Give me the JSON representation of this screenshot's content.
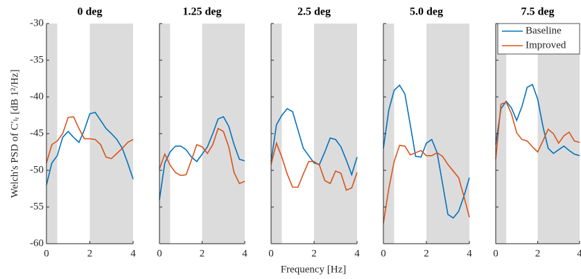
{
  "xlabel": "Frequency [Hz]",
  "ylabel": "Welch's PSD of C′ₗᵣ [dB 1²/Hz]",
  "chart_data": [
    {
      "type": "line",
      "title": "0 deg",
      "x": [
        0,
        0.25,
        0.5,
        0.75,
        1,
        1.25,
        1.5,
        1.75,
        2,
        2.25,
        2.5,
        2.75,
        3,
        3.25,
        3.5,
        3.75,
        4
      ],
      "series": [
        {
          "name": "Baseline",
          "color": "#0072BD",
          "values": [
            -52,
            -49,
            -48,
            -45.5,
            -44.7,
            -45.5,
            -46.2,
            -44.5,
            -42.3,
            -42.1,
            -43.2,
            -44.3,
            -45,
            -45.8,
            -47,
            -49,
            -51.2
          ]
        },
        {
          "name": "Improved",
          "color": "#D95319",
          "values": [
            -49,
            -46.5,
            -46,
            -45,
            -42.8,
            -42.7,
            -44.3,
            -45.7,
            -45.7,
            -45.8,
            -46.5,
            -48.2,
            -48.4,
            -47.7,
            -47,
            -46.2,
            -45.8
          ]
        }
      ],
      "shaded": [
        [
          0,
          0.5
        ],
        [
          2,
          4
        ]
      ],
      "shade_color": "#dcdcdc",
      "xlim": [
        0,
        4
      ],
      "xticks": [
        0,
        2,
        4
      ],
      "ylim": [
        -60,
        -30
      ],
      "yticks": [
        -60,
        -55,
        -50,
        -45,
        -40,
        -35,
        -30
      ]
    },
    {
      "type": "line",
      "title": "1.25 deg",
      "x": [
        0,
        0.25,
        0.5,
        0.75,
        1,
        1.25,
        1.5,
        1.75,
        2,
        2.25,
        2.5,
        2.75,
        3,
        3.25,
        3.5,
        3.75,
        4
      ],
      "series": [
        {
          "name": "Baseline",
          "color": "#0072BD",
          "values": [
            -54,
            -49,
            -47.5,
            -46.7,
            -46.7,
            -47.2,
            -48.2,
            -48.8,
            -47.8,
            -46.8,
            -45,
            -43,
            -42.7,
            -44,
            -46.5,
            -48.5,
            -48.7
          ]
        },
        {
          "name": "Improved",
          "color": "#D95319",
          "values": [
            -49.8,
            -47.8,
            -49.3,
            -50.3,
            -50.7,
            -50.6,
            -48.6,
            -46.5,
            -46.8,
            -47.7,
            -46.5,
            -44.3,
            -44.7,
            -46.8,
            -50.3,
            -51.8,
            -51.5
          ]
        }
      ],
      "shaded": [
        [
          0,
          0.5
        ],
        [
          2,
          4
        ]
      ],
      "shade_color": "#dcdcdc",
      "xlim": [
        0,
        4
      ],
      "xticks": [
        0,
        2,
        4
      ],
      "ylim": [
        -60,
        -30
      ],
      "yticks": [
        -60,
        -55,
        -50,
        -45,
        -40,
        -35,
        -30
      ]
    },
    {
      "type": "line",
      "title": "2.5 deg",
      "x": [
        0,
        0.25,
        0.5,
        0.75,
        1,
        1.25,
        1.5,
        1.75,
        2,
        2.25,
        2.5,
        2.75,
        3,
        3.25,
        3.5,
        3.75,
        4
      ],
      "series": [
        {
          "name": "Baseline",
          "color": "#0072BD",
          "values": [
            -48.8,
            -43.8,
            -42.5,
            -41.6,
            -42,
            -44.5,
            -47,
            -48,
            -49,
            -49.2,
            -47.5,
            -45.6,
            -45.8,
            -46.8,
            -48.6,
            -50.6,
            -48.2
          ]
        },
        {
          "name": "Improved",
          "color": "#D95319",
          "values": [
            -49.2,
            -46.3,
            -48.2,
            -50.5,
            -52.3,
            -52.3,
            -50.5,
            -48.8,
            -48.8,
            -49.3,
            -51.4,
            -51.8,
            -50.1,
            -50.4,
            -52.7,
            -52.4,
            -50.3
          ]
        }
      ],
      "shaded": [
        [
          0,
          0.5
        ],
        [
          2,
          4
        ]
      ],
      "shade_color": "#dcdcdc",
      "xlim": [
        0,
        4
      ],
      "xticks": [
        0,
        2,
        4
      ],
      "ylim": [
        -60,
        -30
      ],
      "yticks": [
        -60,
        -55,
        -50,
        -45,
        -40,
        -35,
        -30
      ]
    },
    {
      "type": "line",
      "title": "5.0 deg",
      "x": [
        0,
        0.25,
        0.5,
        0.75,
        1,
        1.25,
        1.5,
        1.75,
        2,
        2.25,
        2.5,
        2.75,
        3,
        3.25,
        3.5,
        3.75,
        4
      ],
      "series": [
        {
          "name": "Baseline",
          "color": "#0072BD",
          "values": [
            -47,
            -41.8,
            -39.1,
            -38.4,
            -39.6,
            -43.8,
            -48.1,
            -48.2,
            -46.3,
            -45.8,
            -47.6,
            -51.8,
            -56,
            -56.5,
            -55.6,
            -53.5,
            -51
          ]
        },
        {
          "name": "Improved",
          "color": "#D95319",
          "values": [
            -57.2,
            -52.5,
            -48.8,
            -46.6,
            -46.7,
            -47.9,
            -47.6,
            -47.3,
            -48,
            -48,
            -47.6,
            -48.1,
            -49.2,
            -50.1,
            -51,
            -53.6,
            -56.4
          ]
        }
      ],
      "shaded": [
        [
          0,
          0.5
        ],
        [
          2,
          4
        ]
      ],
      "shade_color": "#dcdcdc",
      "xlim": [
        0,
        4
      ],
      "xticks": [
        0,
        2,
        4
      ],
      "ylim": [
        -60,
        -30
      ],
      "yticks": [
        -60,
        -55,
        -50,
        -45,
        -40,
        -35,
        -30
      ]
    },
    {
      "type": "line",
      "title": "7.5 deg",
      "x": [
        0,
        0.25,
        0.5,
        0.75,
        1,
        1.25,
        1.5,
        1.75,
        2,
        2.25,
        2.5,
        2.75,
        3,
        3.25,
        3.5,
        3.75,
        4
      ],
      "series": [
        {
          "name": "Baseline",
          "color": "#0072BD",
          "values": [
            -46.5,
            -41.6,
            -40.6,
            -41.5,
            -43.2,
            -41.3,
            -38.7,
            -38.3,
            -40.3,
            -44,
            -47,
            -47.7,
            -47.2,
            -46.7,
            -47.3,
            -47.8,
            -48
          ]
        },
        {
          "name": "Improved",
          "color": "#D95319",
          "values": [
            -48.5,
            -41,
            -40.7,
            -42.3,
            -44.9,
            -45.8,
            -46,
            -46.8,
            -47.5,
            -46,
            -44.4,
            -45,
            -46.3,
            -45.3,
            -44.8,
            -46,
            -46.2
          ]
        }
      ],
      "shaded": [
        [
          0,
          0.5
        ],
        [
          2,
          4
        ]
      ],
      "shade_color": "#dcdcdc",
      "xlim": [
        0,
        4
      ],
      "xticks": [
        0,
        2,
        4
      ],
      "ylim": [
        -60,
        -30
      ],
      "yticks": [
        -60,
        -55,
        -50,
        -45,
        -40,
        -35,
        -30
      ],
      "legend": "upper right"
    }
  ]
}
